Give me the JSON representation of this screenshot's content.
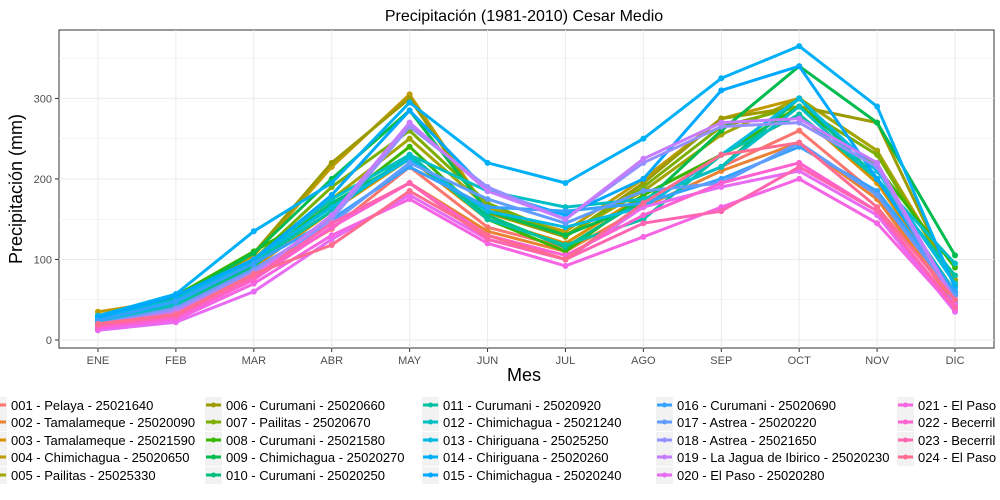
{
  "chart_data": {
    "type": "line",
    "title": "Precipitación (1981-2010)  Cesar Medio",
    "xlabel": "Mes",
    "ylabel": "Precipitación (mm)",
    "categories": [
      "ENE",
      "FEB",
      "MAR",
      "ABR",
      "MAY",
      "JUN",
      "JUL",
      "AGO",
      "SEP",
      "OCT",
      "NOV",
      "DIC"
    ],
    "ylim": [
      -10,
      385
    ],
    "yticks": [
      0,
      100,
      200,
      300
    ],
    "grid": true,
    "legend_position": "bottom",
    "series": [
      {
        "name": "001 - Pelaya - 25021640",
        "color": "#F8766D",
        "values": [
          16,
          37,
          80,
          138,
          215,
          140,
          115,
          175,
          215,
          260,
          180,
          48
        ]
      },
      {
        "name": "002 - Tamalameque - 25020090",
        "color": "#EA8331",
        "values": [
          12,
          33,
          82,
          145,
          195,
          135,
          110,
          165,
          210,
          245,
          175,
          45
        ]
      },
      {
        "name": "003 - Tamalameque - 25021590",
        "color": "#D89000",
        "values": [
          14,
          35,
          90,
          160,
          225,
          150,
          120,
          180,
          230,
          280,
          195,
          55
        ]
      },
      {
        "name": "004 - Chimichagua - 25020650",
        "color": "#C09B00",
        "values": [
          35,
          50,
          105,
          215,
          305,
          160,
          135,
          200,
          275,
          300,
          235,
          75
        ]
      },
      {
        "name": "005 - Pailitas - 25025330",
        "color": "#A3A500",
        "values": [
          18,
          40,
          95,
          175,
          250,
          165,
          130,
          185,
          255,
          300,
          235,
          70
        ]
      },
      {
        "name": "006 - Curumani - 25020660",
        "color": "#9B9B00",
        "values": [
          28,
          45,
          108,
          220,
          300,
          158,
          128,
          195,
          275,
          290,
          270,
          68
        ]
      },
      {
        "name": "007 - Pailitas - 25020670",
        "color": "#7CAE00",
        "values": [
          22,
          42,
          100,
          190,
          260,
          170,
          130,
          190,
          265,
          290,
          230,
          72
        ]
      },
      {
        "name": "008 - Curumani - 25021580",
        "color": "#39B600",
        "values": [
          30,
          55,
          110,
          165,
          240,
          150,
          110,
          180,
          230,
          290,
          215,
          90
        ]
      },
      {
        "name": "009 - Chimichagua - 25020270",
        "color": "#00BB4E",
        "values": [
          25,
          52,
          108,
          200,
          285,
          160,
          130,
          170,
          260,
          340,
          270,
          105
        ]
      },
      {
        "name": "010 - Curumani - 25020250",
        "color": "#00BF7D",
        "values": [
          20,
          44,
          92,
          170,
          225,
          155,
          115,
          175,
          215,
          300,
          200,
          60
        ]
      },
      {
        "name": "011 - Curumani - 25020920",
        "color": "#00C1A3",
        "values": [
          24,
          45,
          96,
          160,
          230,
          150,
          118,
          150,
          230,
          280,
          200,
          80
        ]
      },
      {
        "name": "012 - Chimichagua - 25021240",
        "color": "#00BFC4",
        "values": [
          22,
          45,
          100,
          175,
          230,
          185,
          165,
          175,
          215,
          290,
          200,
          95
        ]
      },
      {
        "name": "013 - Chiriguana - 25025250",
        "color": "#00BAE0",
        "values": [
          26,
          50,
          100,
          165,
          225,
          160,
          140,
          165,
          230,
          300,
          210,
          70
        ]
      },
      {
        "name": "014 - Chiriguana - 25020260",
        "color": "#00B0F6",
        "values": [
          30,
          57,
          135,
          195,
          295,
          220,
          195,
          250,
          325,
          365,
          290,
          65
        ]
      },
      {
        "name": "015 - Chimichagua - 25020240",
        "color": "#00A9FF",
        "values": [
          28,
          55,
          100,
          180,
          285,
          185,
          155,
          200,
          310,
          340,
          200,
          58
        ]
      },
      {
        "name": "016 - Curumani - 25020690",
        "color": "#35A2FF",
        "values": [
          24,
          48,
          95,
          150,
          215,
          165,
          160,
          170,
          200,
          240,
          185,
          60
        ]
      },
      {
        "name": "017 - Astrea - 25020220",
        "color": "#619CFF",
        "values": [
          20,
          40,
          88,
          145,
          220,
          175,
          145,
          185,
          195,
          245,
          180,
          55
        ]
      },
      {
        "name": "018 - Astrea - 25021650",
        "color": "#9590FF",
        "values": [
          18,
          38,
          85,
          150,
          265,
          190,
          150,
          220,
          265,
          270,
          215,
          45
        ]
      },
      {
        "name": "019 - La Jagua de Ibirico - 25020230",
        "color": "#C77CFF",
        "values": [
          16,
          35,
          80,
          155,
          270,
          185,
          150,
          225,
          270,
          275,
          220,
          48
        ]
      },
      {
        "name": "020 - El Paso - 25020280",
        "color": "#E76BF3",
        "values": [
          12,
          22,
          60,
          125,
          180,
          125,
          100,
          165,
          190,
          210,
          155,
          35
        ]
      },
      {
        "name": "021 - El Paso",
        "color": "#F564E3",
        "values": [
          15,
          25,
          70,
          130,
          175,
          120,
          92,
          128,
          165,
          200,
          145,
          38
        ]
      },
      {
        "name": "022 - Becerril",
        "color": "#FD61D1",
        "values": [
          16,
          28,
          75,
          140,
          195,
          130,
          105,
          155,
          195,
          220,
          160,
          42
        ]
      },
      {
        "name": "023 - Becerril",
        "color": "#FF65B0",
        "values": [
          18,
          30,
          78,
          145,
          195,
          125,
          100,
          145,
          160,
          215,
          160,
          40
        ]
      },
      {
        "name": "024 - El Paso",
        "color": "#FF6C90",
        "values": [
          20,
          32,
          82,
          118,
          185,
          130,
          100,
          170,
          230,
          245,
          165,
          50
        ]
      }
    ]
  }
}
